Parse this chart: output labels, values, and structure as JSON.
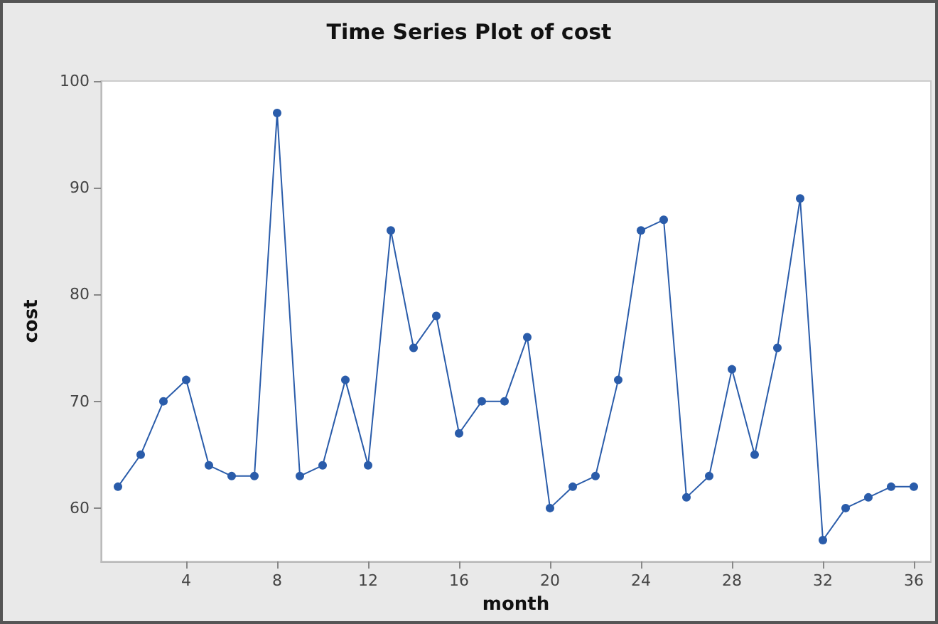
{
  "chart_data": {
    "type": "line",
    "title": "Time Series Plot of cost",
    "xlabel": "month",
    "ylabel": "cost",
    "x": [
      1,
      2,
      3,
      4,
      5,
      6,
      7,
      8,
      9,
      10,
      11,
      12,
      13,
      14,
      15,
      16,
      17,
      18,
      19,
      20,
      21,
      22,
      23,
      24,
      25,
      26,
      27,
      28,
      29,
      30,
      31,
      32,
      33,
      34,
      35,
      36
    ],
    "series": [
      {
        "color": "#2a5caa",
        "values": [
          62,
          65,
          70,
          72,
          64,
          63,
          63,
          97,
          63,
          64,
          72,
          64,
          86,
          75,
          78,
          67,
          70,
          70,
          76,
          60,
          62,
          63,
          72,
          86,
          87,
          61,
          63,
          73,
          65,
          75,
          89,
          57,
          60,
          61,
          62,
          62
        ]
      }
    ],
    "xlim": [
      0.25,
      36.75
    ],
    "xticks": [
      4,
      8,
      12,
      16,
      20,
      24,
      28,
      32,
      36
    ],
    "ylim": [
      55,
      100
    ],
    "yticks": [
      60,
      70,
      80,
      90,
      100
    ],
    "grid": false,
    "marker": "circle",
    "line_style": "solid"
  }
}
